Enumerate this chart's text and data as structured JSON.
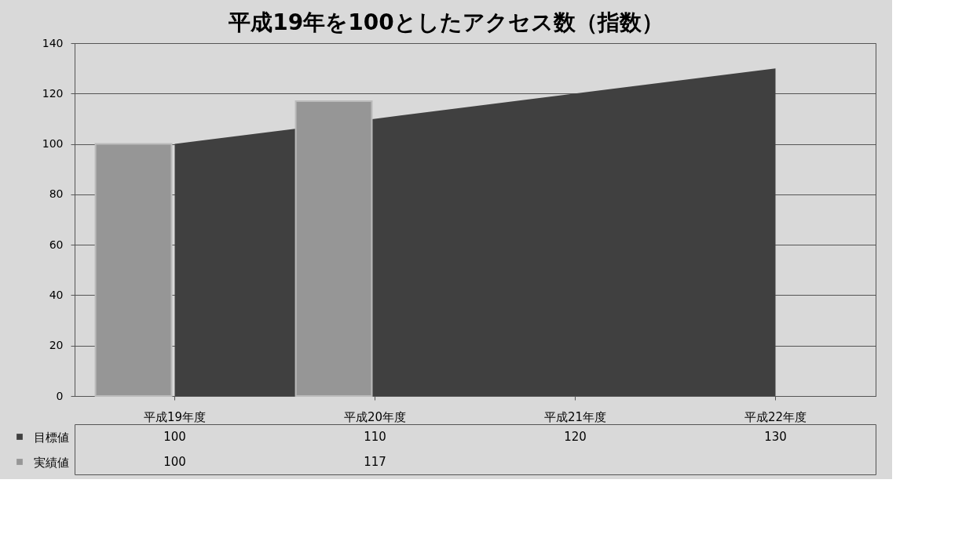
{
  "chart_data": {
    "type": "bar",
    "title": "平成19年を100としたアクセス数（指数）",
    "categories": [
      "平成19年度",
      "平成20年度",
      "平成21年度",
      "平成22年度"
    ],
    "series": [
      {
        "name": "目標値",
        "type": "area",
        "color": "#404040",
        "values": [
          100,
          110,
          120,
          130
        ]
      },
      {
        "name": "実績値",
        "color": "#969696",
        "values": [
          100,
          117,
          null,
          null
        ]
      }
    ],
    "ylim": [
      0,
      140
    ],
    "yticks": [
      0,
      20,
      40,
      60,
      80,
      100,
      120,
      140
    ],
    "grid": "y",
    "data_labels": true,
    "legend": "bottom"
  }
}
